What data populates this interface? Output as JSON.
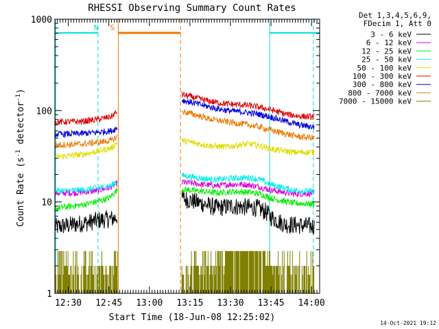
{
  "chart_data": {
    "type": "line",
    "title": "RHESSI Observing Summary Count Rates",
    "xlabel": "Start Time (18-Jun-08 12:25:02)",
    "ylabel": "Count Rate (s^-1 detector^-1)",
    "ylabel_parts": [
      "Count Rate (s",
      "-1",
      " detector",
      "-1",
      ")"
    ],
    "xlim": [
      "12:25:02",
      "14:03:00"
    ],
    "ylim": [
      1,
      1000
    ],
    "yscale": "log",
    "grid": false,
    "legend_position": "top-right",
    "legend_header": [
      "Det 1,3,4,5,6,9,",
      "FDecim 1, Att 0"
    ],
    "x_ticks": [
      "12:30",
      "12:45",
      "13:00",
      "13:15",
      "13:30",
      "13:45",
      "14:00"
    ],
    "y_ticks": [
      "1",
      "10",
      "100",
      "1000"
    ],
    "footer_date": "14-Oct-2021 19:12",
    "data_gap": [
      "12:48:10",
      "13:12:00"
    ],
    "annotations": [
      {
        "label": "N",
        "type": "night",
        "color": "#00dddd",
        "intervals": [
          [
            "12:25:02",
            "12:41:00"
          ],
          [
            "13:44:30",
            "14:03:00"
          ]
        ],
        "markers": [
          "12:41:00",
          "13:44:30",
          "14:00:40"
        ]
      },
      {
        "label": "S",
        "type": "saa",
        "color": "#ee7700",
        "intervals": [
          [
            "12:48:30",
            "13:11:30"
          ]
        ],
        "markers": [
          "12:48:30",
          "13:11:30"
        ]
      }
    ],
    "series": [
      {
        "name": "3 - 6 keV",
        "color": "#000000",
        "seg1": [
          [
            0,
            5.3
          ],
          [
            13,
            6.0
          ],
          [
            16,
            6.3
          ],
          [
            22,
            6.6
          ],
          [
            23.1,
            7.0
          ]
        ],
        "seg2": [
          [
            47,
            11.0
          ],
          [
            55,
            9.5
          ],
          [
            60,
            8.6
          ],
          [
            65,
            9.0
          ],
          [
            75,
            8.6
          ],
          [
            78,
            7.8
          ],
          [
            80,
            6.8
          ],
          [
            85,
            5.7
          ],
          [
            96,
            5.4
          ]
        ]
      },
      {
        "name": "6 - 12 keV",
        "color": "#dd00dd",
        "seg1": [
          [
            0,
            12.5
          ],
          [
            8,
            12.6
          ],
          [
            15,
            13.2
          ],
          [
            20,
            14.2
          ],
          [
            23.1,
            16.0
          ]
        ],
        "seg2": [
          [
            47,
            16.5
          ],
          [
            55,
            15.5
          ],
          [
            60,
            15.0
          ],
          [
            65,
            15.6
          ],
          [
            70,
            15.6
          ],
          [
            75,
            14.8
          ],
          [
            80,
            13.5
          ],
          [
            88,
            12.3
          ],
          [
            96,
            12.4
          ]
        ]
      },
      {
        "name": "12 - 25 keV",
        "color": "#00ee00",
        "seg1": [
          [
            0,
            8.5
          ],
          [
            10,
            9.3
          ],
          [
            15,
            10.0
          ],
          [
            20,
            11.0
          ],
          [
            23.1,
            13.5
          ]
        ],
        "seg2": [
          [
            47,
            13.8
          ],
          [
            55,
            13.0
          ],
          [
            60,
            12.6
          ],
          [
            66,
            13.0
          ],
          [
            72,
            12.8
          ],
          [
            76,
            12.2
          ],
          [
            80,
            11.0
          ],
          [
            88,
            9.7
          ],
          [
            96,
            9.5
          ]
        ]
      },
      {
        "name": "25 - 50 keV",
        "color": "#00eeee",
        "seg1": [
          [
            0,
            13.2
          ],
          [
            10,
            13.5
          ],
          [
            16,
            14.2
          ],
          [
            21,
            15.2
          ],
          [
            23.1,
            17.0
          ]
        ],
        "seg2": [
          [
            47,
            19.5
          ],
          [
            55,
            18.0
          ],
          [
            60,
            17.5
          ],
          [
            66,
            18.2
          ],
          [
            72,
            18.5
          ],
          [
            76,
            17.5
          ],
          [
            80,
            15.5
          ],
          [
            88,
            13.5
          ],
          [
            96,
            13.0
          ]
        ]
      },
      {
        "name": "50 - 100 keV",
        "color": "#dddd00",
        "seg1": [
          [
            0,
            31
          ],
          [
            10,
            33
          ],
          [
            16,
            36
          ],
          [
            21,
            39
          ],
          [
            23.1,
            45
          ]
        ],
        "seg2": [
          [
            47,
            47
          ],
          [
            52,
            44
          ],
          [
            58,
            41
          ],
          [
            64,
            40
          ],
          [
            68,
            42
          ],
          [
            72,
            43
          ],
          [
            76,
            41
          ],
          [
            80,
            38
          ],
          [
            88,
            35
          ],
          [
            96,
            35
          ]
        ]
      },
      {
        "name": "100 - 300 keV",
        "color": "#dd0000",
        "seg1": [
          [
            0,
            75
          ],
          [
            10,
            76
          ],
          [
            16,
            80
          ],
          [
            21,
            86
          ],
          [
            23.1,
            98
          ]
        ],
        "seg2": [
          [
            47,
            150
          ],
          [
            52,
            138
          ],
          [
            58,
            125
          ],
          [
            64,
            118
          ],
          [
            70,
            115
          ],
          [
            75,
            110
          ],
          [
            80,
            102
          ],
          [
            85,
            92
          ],
          [
            90,
            87
          ],
          [
            96,
            85
          ]
        ]
      },
      {
        "name": "300 - 800 keV",
        "color": "#0000dd",
        "seg1": [
          [
            0,
            55
          ],
          [
            10,
            56
          ],
          [
            16,
            58
          ],
          [
            21,
            60
          ],
          [
            23.1,
            65
          ]
        ],
        "seg2": [
          [
            47,
            130
          ],
          [
            52,
            120
          ],
          [
            58,
            108
          ],
          [
            64,
            100
          ],
          [
            70,
            96
          ],
          [
            75,
            92
          ],
          [
            80,
            85
          ],
          [
            85,
            77
          ],
          [
            90,
            70
          ],
          [
            96,
            66
          ]
        ]
      },
      {
        "name": "800 - 7000 keV",
        "color": "#ee7700",
        "seg1": [
          [
            0,
            42
          ],
          [
            10,
            43
          ],
          [
            16,
            45
          ],
          [
            21,
            47
          ],
          [
            23.1,
            52
          ]
        ],
        "seg2": [
          [
            47,
            98
          ],
          [
            52,
            90
          ],
          [
            58,
            80
          ],
          [
            64,
            75
          ],
          [
            70,
            71
          ],
          [
            75,
            67
          ],
          [
            80,
            61
          ],
          [
            85,
            56
          ],
          [
            90,
            52
          ],
          [
            96,
            50
          ]
        ]
      },
      {
        "name": "7000 - 15000 keV",
        "color": "#808000",
        "seg1": [
          [
            0,
            1.6
          ],
          [
            23.1,
            1.6
          ]
        ],
        "seg2": [
          [
            47,
            1.6
          ],
          [
            96,
            1.6
          ]
        ]
      }
    ]
  }
}
